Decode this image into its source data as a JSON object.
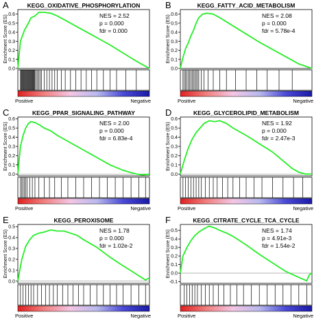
{
  "figure": {
    "colors": {
      "curve": "#22ee22",
      "axis": "#000000",
      "hit": "#000000",
      "gradient": [
        "#e02020",
        "#f08080",
        "#f3c6e4",
        "#b9b9ee",
        "#4a4ad6",
        "#1a1aa8"
      ]
    },
    "common": {
      "ylabel": "Enrichment Score (ES)",
      "positive": "Positive",
      "negative": "Negative"
    }
  },
  "chart_data": [
    {
      "panel": "A",
      "type": "line",
      "title": "KEGG_OXIDATIVE_PHOSPHORYLATION",
      "ylabel": "Enrichment Score (ES)",
      "ylim": [
        0,
        0.65
      ],
      "yticks": [
        "0.6",
        "0.5",
        "0.4",
        "0.3",
        "0.2",
        "0.1",
        "0.0"
      ],
      "stats": [
        "NES = 2.52",
        "p = 0.000",
        "fdr = 0.000"
      ],
      "x": [
        0,
        0.02,
        0.05,
        0.08,
        0.1,
        0.13,
        0.16,
        0.2,
        0.25,
        0.3,
        0.4,
        0.5,
        0.6,
        0.7,
        0.8,
        0.9,
        0.95,
        1.0
      ],
      "y": [
        0,
        0.3,
        0.42,
        0.5,
        0.56,
        0.58,
        0.62,
        0.62,
        0.61,
        0.58,
        0.5,
        0.42,
        0.34,
        0.26,
        0.17,
        0.08,
        0.04,
        0.0
      ],
      "hits": [
        0.02,
        0.025,
        0.03,
        0.035,
        0.04,
        0.045,
        0.05,
        0.055,
        0.06,
        0.065,
        0.07,
        0.075,
        0.08,
        0.085,
        0.09,
        0.095,
        0.1,
        0.105,
        0.11,
        0.115,
        0.12,
        0.125,
        0.13,
        0.14,
        0.15,
        0.16,
        0.17,
        0.18,
        0.2,
        0.22,
        0.24,
        0.26,
        0.28,
        0.3,
        0.33,
        0.36,
        0.4,
        0.44,
        0.48,
        0.52,
        0.56,
        0.6,
        0.65,
        0.7,
        0.75,
        0.82,
        0.9
      ],
      "positive_label": "Positive",
      "negative_label": "Negative"
    },
    {
      "panel": "B",
      "type": "line",
      "title": "KEGG_FATTY_ACID_METABOLISM",
      "ylabel": "Enrichment Score (ES)",
      "ylim": [
        0,
        0.65
      ],
      "yticks": [
        "0.6",
        "0.5",
        "0.4",
        "0.3",
        "0.2",
        "0.1",
        "0.0"
      ],
      "stats": [
        "NES = 2.08",
        "p = 0.000",
        "fdr = 5.78e-4"
      ],
      "x": [
        0,
        0.02,
        0.04,
        0.06,
        0.08,
        0.1,
        0.12,
        0.14,
        0.17,
        0.2,
        0.25,
        0.3,
        0.4,
        0.5,
        0.6,
        0.7,
        0.8,
        0.9,
        1.0
      ],
      "y": [
        0,
        0.12,
        0.22,
        0.28,
        0.36,
        0.42,
        0.5,
        0.56,
        0.6,
        0.61,
        0.6,
        0.56,
        0.47,
        0.38,
        0.29,
        0.21,
        0.13,
        0.05,
        0.0
      ],
      "hits": [
        0.02,
        0.03,
        0.04,
        0.05,
        0.06,
        0.07,
        0.08,
        0.09,
        0.1,
        0.11,
        0.12,
        0.13,
        0.14,
        0.16,
        0.18,
        0.21,
        0.25,
        0.3,
        0.35,
        0.42,
        0.5,
        0.58,
        0.66,
        0.75,
        0.85
      ],
      "positive_label": "Positive",
      "negative_label": "Negative"
    },
    {
      "panel": "C",
      "type": "line",
      "title": "KEGG_PPAR_SIGNALING_PATHWAY",
      "ylabel": "Enrichment Score (ES)",
      "ylim": [
        -0.02,
        0.62
      ],
      "yticks": [
        "0.6",
        "0.5",
        "0.4",
        "0.3",
        "0.2",
        "0.1",
        "0.0"
      ],
      "stats": [
        "NES = 2.00",
        "p = 0.000",
        "fdr = 6.83e-4"
      ],
      "x": [
        0,
        0.02,
        0.04,
        0.06,
        0.08,
        0.1,
        0.13,
        0.17,
        0.2,
        0.25,
        0.3,
        0.4,
        0.5,
        0.6,
        0.7,
        0.8,
        0.85,
        0.9,
        0.95,
        1.0
      ],
      "y": [
        0,
        0.3,
        0.42,
        0.5,
        0.55,
        0.57,
        0.56,
        0.53,
        0.5,
        0.47,
        0.42,
        0.34,
        0.26,
        0.18,
        0.1,
        0.04,
        0.02,
        0.0,
        -0.01,
        0.0
      ],
      "hits": [
        0.02,
        0.03,
        0.04,
        0.05,
        0.06,
        0.07,
        0.09,
        0.11,
        0.13,
        0.16,
        0.2,
        0.24,
        0.28,
        0.33,
        0.38,
        0.44,
        0.5,
        0.56,
        0.62,
        0.68,
        0.74,
        0.8,
        0.86,
        0.92,
        0.97
      ],
      "positive_label": "Positive",
      "negative_label": "Negative"
    },
    {
      "panel": "D",
      "type": "line",
      "title": "KEGG_GLYCEROLIPID_METABOLISM",
      "ylabel": "Enrichment Score (ES)",
      "ylim": [
        -0.02,
        0.62
      ],
      "yticks": [
        "0.6",
        "0.5",
        "0.4",
        "0.3",
        "0.2",
        "0.1",
        "0.0"
      ],
      "stats": [
        "NES = 1.92",
        "p = 0.000",
        "fdr = 2.47e-3"
      ],
      "x": [
        0,
        0.03,
        0.06,
        0.09,
        0.12,
        0.15,
        0.18,
        0.22,
        0.26,
        0.3,
        0.35,
        0.4,
        0.5,
        0.6,
        0.7,
        0.8,
        0.85,
        0.9,
        0.95,
        1.0
      ],
      "y": [
        0,
        0.15,
        0.28,
        0.38,
        0.45,
        0.5,
        0.55,
        0.58,
        0.57,
        0.58,
        0.55,
        0.5,
        0.42,
        0.33,
        0.24,
        0.12,
        0.06,
        0.02,
        0.0,
        0.0
      ],
      "hits": [
        0.02,
        0.04,
        0.06,
        0.08,
        0.1,
        0.12,
        0.14,
        0.16,
        0.19,
        0.22,
        0.25,
        0.28,
        0.32,
        0.36,
        0.4,
        0.45,
        0.5,
        0.56,
        0.62,
        0.7,
        0.78,
        0.86,
        0.93
      ],
      "positive_label": "Positive",
      "negative_label": "Negative"
    },
    {
      "panel": "E",
      "type": "line",
      "title": "KEGG_PEROXISOME",
      "ylabel": "Enrichment Score (ES)",
      "ylim": [
        -0.02,
        0.52
      ],
      "yticks": [
        "0.5",
        "0.4",
        "0.3",
        "0.2",
        "0.1",
        "0.0"
      ],
      "stats": [
        "NES = 1.78",
        "p = 0.000",
        "fdr = 1.02e-2"
      ],
      "x": [
        0,
        0.03,
        0.06,
        0.09,
        0.12,
        0.16,
        0.2,
        0.25,
        0.3,
        0.35,
        0.4,
        0.45,
        0.5,
        0.6,
        0.7,
        0.8,
        0.88,
        0.93,
        0.97,
        1.0
      ],
      "y": [
        0,
        0.2,
        0.32,
        0.38,
        0.42,
        0.44,
        0.45,
        0.47,
        0.46,
        0.46,
        0.44,
        0.42,
        0.38,
        0.31,
        0.22,
        0.14,
        0.08,
        0.04,
        0.01,
        0.03
      ],
      "hits": [
        0.02,
        0.04,
        0.06,
        0.08,
        0.1,
        0.12,
        0.15,
        0.18,
        0.21,
        0.24,
        0.27,
        0.3,
        0.34,
        0.38,
        0.42,
        0.46,
        0.5,
        0.55,
        0.6,
        0.65,
        0.7,
        0.75,
        0.8,
        0.86,
        0.92,
        0.97
      ],
      "positive_label": "Positive",
      "negative_label": "Negative"
    },
    {
      "panel": "F",
      "type": "line",
      "title": "KEGG_CITRATE_CYCLE_TCA_CYCLE",
      "ylabel": "Enrichment Score (ES)",
      "ylim": [
        -0.12,
        0.57
      ],
      "yticks": [
        "0.5",
        "0.4",
        "0.3",
        "0.2",
        "0.1",
        "0.0",
        "-0.1"
      ],
      "stats": [
        "NES = 1.74",
        "p = 4.91e-3",
        "fdr = 1.54e-2"
      ],
      "x": [
        0,
        0.02,
        0.05,
        0.08,
        0.11,
        0.14,
        0.18,
        0.22,
        0.26,
        0.3,
        0.35,
        0.4,
        0.5,
        0.6,
        0.7,
        0.8,
        0.9,
        0.96,
        0.98,
        1.0
      ],
      "y": [
        0,
        0.2,
        0.3,
        0.38,
        0.44,
        0.48,
        0.52,
        0.55,
        0.53,
        0.5,
        0.47,
        0.43,
        0.33,
        0.22,
        0.12,
        0.02,
        -0.05,
        -0.09,
        -0.02,
        0.0
      ],
      "hits": [
        0.03,
        0.05,
        0.07,
        0.09,
        0.11,
        0.13,
        0.16,
        0.19,
        0.22,
        0.25,
        0.29,
        0.33,
        0.38,
        0.43,
        0.48,
        0.54,
        0.6,
        0.66,
        0.72,
        0.78,
        0.84,
        0.9,
        0.96
      ],
      "positive_label": "Positive",
      "negative_label": "Negative"
    }
  ]
}
